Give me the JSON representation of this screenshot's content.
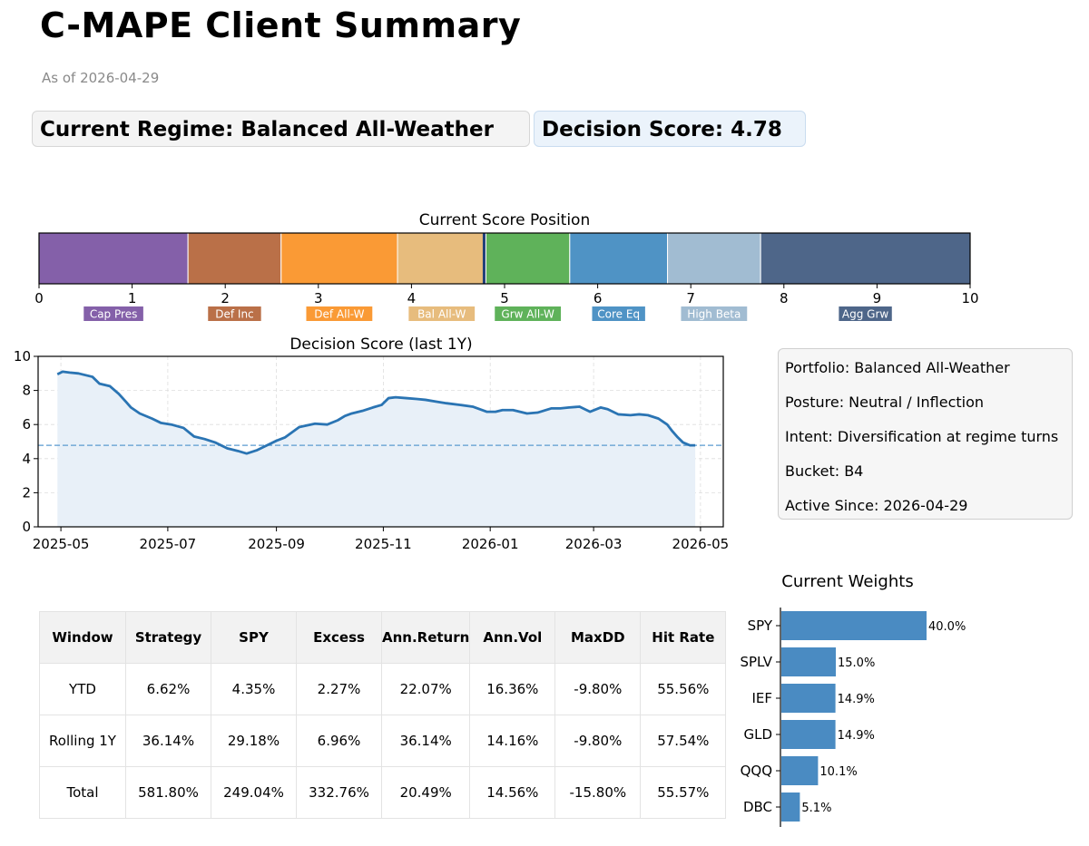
{
  "header": {
    "title": "C-MAPE Client Summary",
    "as_of": "As of 2026-04-29",
    "regime_badge": "Current Regime: Balanced All-Weather",
    "score_badge": "Decision Score: 4.78"
  },
  "info": {
    "portfolio": "Portfolio: Balanced All-Weather",
    "posture": "Posture: Neutral / Inflection",
    "intent": "Intent: Diversification at regime turns",
    "bucket": "Bucket: B4",
    "active_since": "Active Since: 2026-04-29"
  },
  "metrics_table": {
    "headers": [
      "Window",
      "Strategy",
      "SPY",
      "Excess",
      "Ann.Return",
      "Ann.Vol",
      "MaxDD",
      "Hit Rate"
    ],
    "rows": [
      [
        "YTD",
        "6.62%",
        "4.35%",
        "2.27%",
        "22.07%",
        "16.36%",
        "-9.80%",
        "55.56%"
      ],
      [
        "Rolling 1Y",
        "36.14%",
        "29.18%",
        "6.96%",
        "36.14%",
        "14.16%",
        "-9.80%",
        "57.54%"
      ],
      [
        "Total",
        "581.80%",
        "249.04%",
        "332.76%",
        "20.49%",
        "14.56%",
        "-15.80%",
        "55.57%"
      ]
    ]
  },
  "chart_data": [
    {
      "type": "bar",
      "title": "Current Score Position",
      "xlim": [
        0,
        10
      ],
      "ticks": [
        0,
        1,
        2,
        3,
        4,
        5,
        6,
        7,
        8,
        9,
        10
      ],
      "segments": [
        {
          "label": "Cap Pres",
          "start": 0.0,
          "end": 1.6,
          "color": "#8460a9"
        },
        {
          "label": "Def Inc",
          "start": 1.6,
          "end": 2.6,
          "color": "#ba7048"
        },
        {
          "label": "Def All-W",
          "start": 2.6,
          "end": 3.85,
          "color": "#fa9a35"
        },
        {
          "label": "Bal All-W",
          "start": 3.85,
          "end": 4.8,
          "color": "#e7bc7d"
        },
        {
          "label": "Grw All-W",
          "start": 4.8,
          "end": 5.7,
          "color": "#5fb25a"
        },
        {
          "label": "Core Eq",
          "start": 5.7,
          "end": 6.75,
          "color": "#4f93c5"
        },
        {
          "label": "High Beta",
          "start": 6.75,
          "end": 7.75,
          "color": "#a1bcd2"
        },
        {
          "label": "Agg Grw",
          "start": 7.75,
          "end": 10.0,
          "color": "#4e6689"
        }
      ],
      "marker": 4.78
    },
    {
      "type": "area",
      "title": "Decision Score (last 1Y)",
      "ylim": [
        0,
        10
      ],
      "yticks": [
        0,
        2,
        4,
        6,
        8,
        10
      ],
      "xticks": [
        "2025-05",
        "2025-07",
        "2025-09",
        "2025-11",
        "2026-01",
        "2026-03",
        "2026-05"
      ],
      "xtick_days": [
        0,
        61,
        123,
        184,
        245,
        304,
        365
      ],
      "reference_line": 4.78,
      "x_days": [
        -2,
        1,
        5,
        10,
        18,
        22,
        28,
        33,
        37,
        40,
        45,
        52,
        57,
        63,
        70,
        76,
        82,
        88,
        95,
        101,
        106,
        112,
        118,
        123,
        128,
        132,
        136,
        145,
        152,
        158,
        162,
        166,
        172,
        178,
        183,
        187,
        191,
        197,
        203,
        208,
        214,
        220,
        228,
        235,
        243,
        248,
        252,
        258,
        262,
        266,
        272,
        280,
        285,
        290,
        296,
        302,
        308,
        312,
        318,
        325,
        330,
        335,
        341,
        346,
        349,
        352,
        355,
        359,
        362
      ],
      "values": [
        8.95,
        9.1,
        9.05,
        9.0,
        8.8,
        8.4,
        8.25,
        7.8,
        7.35,
        7.0,
        6.65,
        6.35,
        6.1,
        6.0,
        5.8,
        5.3,
        5.15,
        4.95,
        4.6,
        4.45,
        4.3,
        4.5,
        4.8,
        5.05,
        5.25,
        5.55,
        5.85,
        6.05,
        6.0,
        6.25,
        6.5,
        6.65,
        6.8,
        7.0,
        7.15,
        7.55,
        7.6,
        7.55,
        7.5,
        7.45,
        7.35,
        7.25,
        7.15,
        7.05,
        6.75,
        6.75,
        6.85,
        6.85,
        6.75,
        6.65,
        6.7,
        6.95,
        6.95,
        7.0,
        7.05,
        6.75,
        7.0,
        6.9,
        6.6,
        6.55,
        6.6,
        6.55,
        6.35,
        6.0,
        5.6,
        5.25,
        4.95,
        4.78,
        4.78
      ]
    },
    {
      "type": "bar",
      "orientation": "horizontal",
      "title": "Current Weights",
      "categories": [
        "SPY",
        "SPLV",
        "IEF",
        "GLD",
        "QQQ",
        "DBC"
      ],
      "values": [
        40.0,
        15.0,
        14.9,
        14.9,
        10.1,
        5.1
      ],
      "data_labels": [
        "40.0%",
        "15.0%",
        "14.9%",
        "14.9%",
        "10.1%",
        "5.1%"
      ],
      "color": "#4a8bc2"
    }
  ]
}
